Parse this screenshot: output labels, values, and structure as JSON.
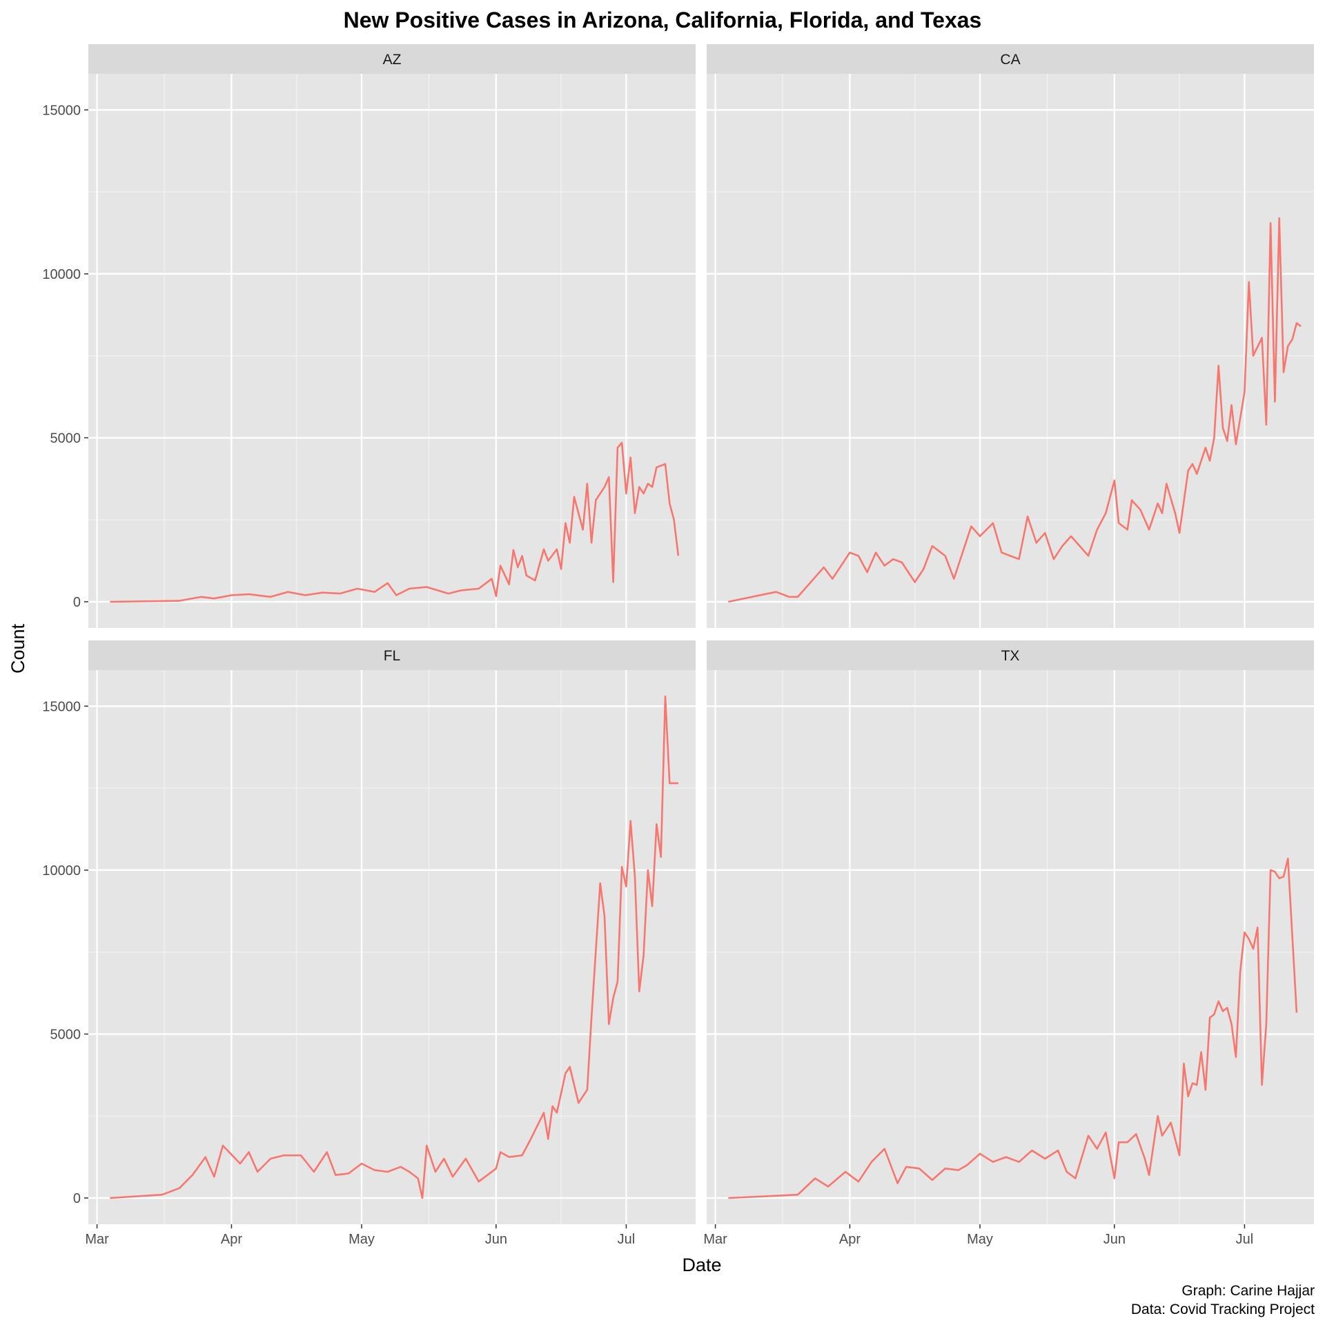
{
  "chart_data": {
    "type": "line",
    "title": "New Positive Cases in Arizona, California, Florida, and Texas",
    "xlabel": "Date",
    "ylabel": "Count",
    "caption": [
      "Graph: Carine Hajjar",
      "Data: Covid Tracking Project"
    ],
    "x_ticks": [
      "Mar",
      "Apr",
      "May",
      "Jun",
      "Jul"
    ],
    "x_tick_dates": [
      "2020-03-01",
      "2020-04-01",
      "2020-05-01",
      "2020-06-01",
      "2020-07-01"
    ],
    "x_range": [
      "2020-02-28",
      "2020-07-17"
    ],
    "y_ticks": [
      "0",
      "5000",
      "10000",
      "15000"
    ],
    "ylim": [
      -800,
      16100
    ],
    "grid": true,
    "line_color": "#F8766D",
    "panel_background": "#E5E5E5",
    "strip_background": "#D9D9D9",
    "panels": [
      {
        "label": "AZ",
        "x": [
          "2020-03-04",
          "2020-03-20",
          "2020-03-25",
          "2020-03-28",
          "2020-04-01",
          "2020-04-05",
          "2020-04-10",
          "2020-04-14",
          "2020-04-18",
          "2020-04-22",
          "2020-04-26",
          "2020-04-30",
          "2020-05-04",
          "2020-05-07",
          "2020-05-09",
          "2020-05-12",
          "2020-05-16",
          "2020-05-21",
          "2020-05-24",
          "2020-05-28",
          "2020-05-31",
          "2020-06-01",
          "2020-06-02",
          "2020-06-04",
          "2020-06-05",
          "2020-06-06",
          "2020-06-07",
          "2020-06-08",
          "2020-06-10",
          "2020-06-12",
          "2020-06-13",
          "2020-06-15",
          "2020-06-16",
          "2020-06-17",
          "2020-06-18",
          "2020-06-19",
          "2020-06-21",
          "2020-06-22",
          "2020-06-23",
          "2020-06-24",
          "2020-06-26",
          "2020-06-27",
          "2020-06-28",
          "2020-06-29",
          "2020-06-30",
          "2020-07-01",
          "2020-07-02",
          "2020-07-03",
          "2020-07-04",
          "2020-07-05",
          "2020-07-06",
          "2020-07-07",
          "2020-07-08",
          "2020-07-10",
          "2020-07-11",
          "2020-07-12",
          "2020-07-13"
        ],
        "y": [
          0,
          30,
          150,
          100,
          200,
          230,
          150,
          300,
          200,
          280,
          250,
          400,
          300,
          570,
          200,
          400,
          450,
          250,
          350,
          400,
          700,
          170,
          1100,
          530,
          1580,
          1050,
          1400,
          800,
          650,
          1600,
          1250,
          1600,
          1000,
          2400,
          1800,
          3200,
          2200,
          3600,
          1800,
          3100,
          3500,
          3800,
          600,
          4700,
          4850,
          3300,
          4400,
          2700,
          3500,
          3300,
          3600,
          3500,
          4100,
          4200,
          3000,
          2500,
          1400
        ]
      },
      {
        "label": "CA",
        "x": [
          "2020-03-04",
          "2020-03-15",
          "2020-03-18",
          "2020-03-20",
          "2020-03-23",
          "2020-03-26",
          "2020-03-28",
          "2020-04-01",
          "2020-04-03",
          "2020-04-05",
          "2020-04-07",
          "2020-04-09",
          "2020-04-11",
          "2020-04-13",
          "2020-04-16",
          "2020-04-18",
          "2020-04-20",
          "2020-04-23",
          "2020-04-25",
          "2020-04-29",
          "2020-05-01",
          "2020-05-04",
          "2020-05-06",
          "2020-05-08",
          "2020-05-10",
          "2020-05-12",
          "2020-05-14",
          "2020-05-16",
          "2020-05-18",
          "2020-05-20",
          "2020-05-22",
          "2020-05-24",
          "2020-05-26",
          "2020-05-28",
          "2020-05-30",
          "2020-06-01",
          "2020-06-02",
          "2020-06-04",
          "2020-06-05",
          "2020-06-07",
          "2020-06-09",
          "2020-06-11",
          "2020-06-12",
          "2020-06-13",
          "2020-06-15",
          "2020-06-16",
          "2020-06-18",
          "2020-06-19",
          "2020-06-20",
          "2020-06-22",
          "2020-06-23",
          "2020-06-24",
          "2020-06-25",
          "2020-06-26",
          "2020-06-27",
          "2020-06-28",
          "2020-06-29",
          "2020-07-01",
          "2020-07-02",
          "2020-07-03",
          "2020-07-05",
          "2020-07-06",
          "2020-07-07",
          "2020-07-08",
          "2020-07-09",
          "2020-07-10",
          "2020-07-11",
          "2020-07-12",
          "2020-07-13",
          "2020-07-14"
        ],
        "y": [
          0,
          300,
          150,
          150,
          600,
          1050,
          700,
          1500,
          1400,
          900,
          1500,
          1100,
          1300,
          1200,
          600,
          1000,
          1700,
          1400,
          700,
          2300,
          2000,
          2400,
          1500,
          1400,
          1300,
          2600,
          1800,
          2100,
          1300,
          1700,
          2000,
          1700,
          1400,
          2200,
          2700,
          3700,
          2400,
          2200,
          3100,
          2800,
          2200,
          3000,
          2700,
          3600,
          2700,
          2100,
          4000,
          4200,
          3900,
          4700,
          4300,
          5000,
          7200,
          5300,
          4900,
          6000,
          4800,
          6400,
          9750,
          7500,
          8050,
          5400,
          11550,
          6100,
          11700,
          7000,
          7800,
          8000,
          8500,
          8400
        ]
      },
      {
        "label": "FL",
        "x": [
          "2020-03-04",
          "2020-03-16",
          "2020-03-20",
          "2020-03-23",
          "2020-03-26",
          "2020-03-28",
          "2020-03-30",
          "2020-04-03",
          "2020-04-05",
          "2020-04-07",
          "2020-04-10",
          "2020-04-13",
          "2020-04-17",
          "2020-04-20",
          "2020-04-23",
          "2020-04-25",
          "2020-04-28",
          "2020-05-01",
          "2020-05-04",
          "2020-05-07",
          "2020-05-10",
          "2020-05-12",
          "2020-05-14",
          "2020-05-15",
          "2020-05-16",
          "2020-05-18",
          "2020-05-20",
          "2020-05-22",
          "2020-05-25",
          "2020-05-28",
          "2020-06-01",
          "2020-06-02",
          "2020-06-04",
          "2020-06-07",
          "2020-06-09",
          "2020-06-12",
          "2020-06-13",
          "2020-06-14",
          "2020-06-15",
          "2020-06-17",
          "2020-06-18",
          "2020-06-20",
          "2020-06-22",
          "2020-06-23",
          "2020-06-25",
          "2020-06-26",
          "2020-06-27",
          "2020-06-28",
          "2020-06-29",
          "2020-06-30",
          "2020-07-01",
          "2020-07-02",
          "2020-07-03",
          "2020-07-04",
          "2020-07-05",
          "2020-07-06",
          "2020-07-07",
          "2020-07-08",
          "2020-07-09",
          "2020-07-10",
          "2020-07-11",
          "2020-07-12",
          "2020-07-13"
        ],
        "y": [
          0,
          100,
          300,
          700,
          1250,
          650,
          1600,
          1050,
          1400,
          800,
          1200,
          1300,
          1300,
          800,
          1400,
          700,
          750,
          1050,
          850,
          800,
          950,
          800,
          600,
          0,
          1600,
          800,
          1200,
          650,
          1200,
          500,
          900,
          1400,
          1250,
          1300,
          1800,
          2600,
          1800,
          2800,
          2600,
          3800,
          4000,
          2900,
          3300,
          5500,
          9600,
          8600,
          5300,
          6100,
          6600,
          10100,
          9500,
          11500,
          9800,
          6300,
          7400,
          10000,
          8900,
          11400,
          10400,
          15300,
          12650,
          12650,
          12650
        ]
      },
      {
        "label": "TX",
        "x": [
          "2020-03-04",
          "2020-03-20",
          "2020-03-24",
          "2020-03-27",
          "2020-03-31",
          "2020-04-03",
          "2020-04-06",
          "2020-04-09",
          "2020-04-12",
          "2020-04-14",
          "2020-04-17",
          "2020-04-20",
          "2020-04-23",
          "2020-04-26",
          "2020-04-28",
          "2020-05-01",
          "2020-05-04",
          "2020-05-07",
          "2020-05-10",
          "2020-05-13",
          "2020-05-16",
          "2020-05-19",
          "2020-05-21",
          "2020-05-23",
          "2020-05-26",
          "2020-05-28",
          "2020-05-30",
          "2020-06-01",
          "2020-06-02",
          "2020-06-04",
          "2020-06-06",
          "2020-06-08",
          "2020-06-09",
          "2020-06-11",
          "2020-06-12",
          "2020-06-14",
          "2020-06-16",
          "2020-06-17",
          "2020-06-18",
          "2020-06-19",
          "2020-06-20",
          "2020-06-21",
          "2020-06-22",
          "2020-06-23",
          "2020-06-24",
          "2020-06-25",
          "2020-06-26",
          "2020-06-27",
          "2020-06-28",
          "2020-06-29",
          "2020-06-30",
          "2020-07-01",
          "2020-07-02",
          "2020-07-03",
          "2020-07-04",
          "2020-07-05",
          "2020-07-06",
          "2020-07-07",
          "2020-07-08",
          "2020-07-09",
          "2020-07-10",
          "2020-07-11",
          "2020-07-12",
          "2020-07-13"
        ],
        "y": [
          0,
          100,
          600,
          350,
          800,
          500,
          1100,
          1500,
          450,
          950,
          900,
          550,
          900,
          850,
          1000,
          1350,
          1100,
          1250,
          1100,
          1450,
          1200,
          1450,
          800,
          600,
          1900,
          1500,
          2000,
          600,
          1700,
          1700,
          1950,
          1200,
          700,
          2500,
          1900,
          2300,
          1300,
          4100,
          3100,
          3500,
          3450,
          4450,
          3300,
          5500,
          5600,
          6000,
          5700,
          5800,
          5300,
          4300,
          6900,
          8100,
          7900,
          7600,
          8250,
          3450,
          5300,
          10000,
          9950,
          9750,
          9800,
          10350,
          8000,
          5650
        ]
      }
    ]
  }
}
